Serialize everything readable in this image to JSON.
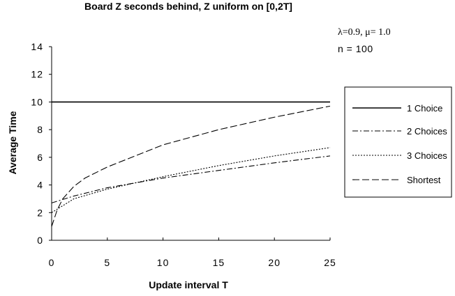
{
  "chart_data": {
    "type": "line",
    "title": "Board Z seconds behind, Z uniform on [0,2T]",
    "xlabel": "Update interval T",
    "ylabel": "Average Time",
    "xlim": [
      0,
      25
    ],
    "ylim": [
      0,
      14
    ],
    "xticks": [
      0,
      5,
      10,
      15,
      20,
      25
    ],
    "yticks": [
      0,
      2,
      4,
      6,
      8,
      10,
      12,
      14
    ],
    "grid": false,
    "legend_position": "right",
    "params_text": "λ=0.9, μ= 1.0",
    "n_text": "n  =  100",
    "series": [
      {
        "name": "1 Choice",
        "dash": "solid",
        "x": [
          0,
          25
        ],
        "y": [
          10,
          10
        ]
      },
      {
        "name": "2 Choices",
        "dash": "dashdot",
        "x": [
          0,
          2,
          5,
          10,
          15,
          20,
          25
        ],
        "y": [
          2.7,
          3.2,
          3.8,
          4.5,
          5.05,
          5.6,
          6.1
        ]
      },
      {
        "name": "3 Choices",
        "dash": "dotted",
        "x": [
          0,
          1,
          2,
          5,
          10,
          15,
          20,
          25
        ],
        "y": [
          2.0,
          2.5,
          3.0,
          3.7,
          4.6,
          5.4,
          6.1,
          6.7
        ]
      },
      {
        "name": "Shortest",
        "dash": "dashed",
        "x": [
          0,
          0.5,
          1,
          2,
          3,
          5,
          10,
          15,
          20,
          25
        ],
        "y": [
          1.0,
          2.2,
          3.0,
          3.9,
          4.5,
          5.3,
          6.9,
          8.0,
          8.9,
          9.7
        ]
      }
    ]
  }
}
